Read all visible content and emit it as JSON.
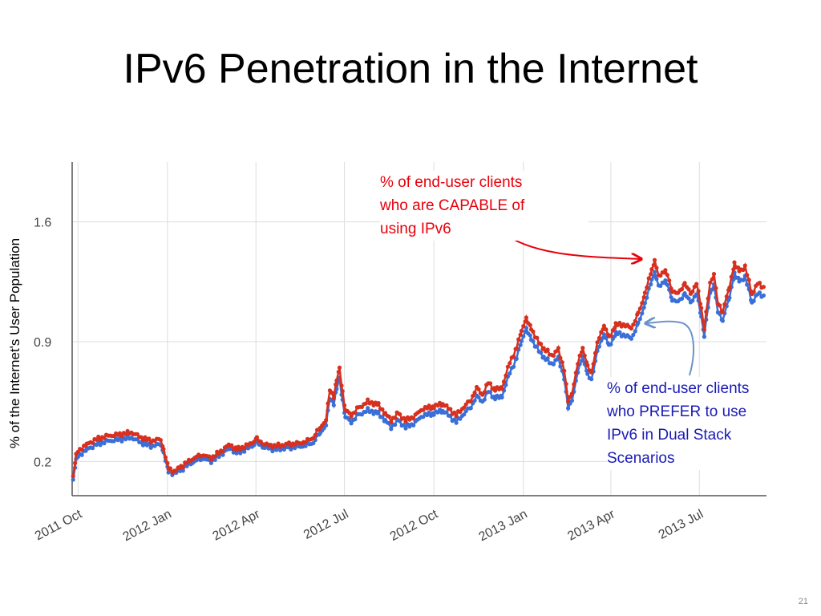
{
  "slide": {
    "title": "IPv6 Penetration in the Internet",
    "page_number": "21"
  },
  "annotations": {
    "capable_lines": [
      "% of end-user clients",
      "who are CAPABLE of",
      "using IPv6"
    ],
    "prefer_lines": [
      "% of end-user clients",
      "who PREFER to use",
      "IPv6 in Dual Stack",
      "Scenarios"
    ]
  },
  "colors": {
    "capable": "#d7301f",
    "prefer": "#3a6fd8",
    "capable_text": "#e8000b",
    "prefer_text": "#1a1ab8",
    "arrow_red": "#e8000b",
    "arrow_blue": "#6b93c9",
    "grid": "#dddddd",
    "axis_text": "#444444"
  },
  "chart_data": {
    "type": "line",
    "title": "",
    "xlabel": "",
    "ylabel": "% of the Internet's User Population",
    "x_axis": "date",
    "x_ticks": [
      "2011 Oct",
      "2012 Jan",
      "2012 Apr",
      "2012 Jul",
      "2012 Oct",
      "2013 Jan",
      "2013 Apr",
      "2013 Jul"
    ],
    "x_range": [
      "2011-09-25",
      "2013-09-08"
    ],
    "y_ticks": [
      "0.2",
      "0.9",
      "1.6"
    ],
    "ylim": [
      0.0,
      1.95
    ],
    "grid": true,
    "legend": "none",
    "series": [
      {
        "name": "% of end-user clients who are CAPABLE of using IPv6",
        "marker": "dot",
        "points": [
          [
            "2011-09-26",
            0.11
          ],
          [
            "2011-09-29",
            0.24
          ],
          [
            "2011-10-03",
            0.27
          ],
          [
            "2011-10-10",
            0.3
          ],
          [
            "2011-10-20",
            0.33
          ],
          [
            "2011-11-01",
            0.35
          ],
          [
            "2011-11-15",
            0.36
          ],
          [
            "2011-11-25",
            0.37
          ],
          [
            "2011-12-05",
            0.34
          ],
          [
            "2011-12-15",
            0.32
          ],
          [
            "2011-12-25",
            0.33
          ],
          [
            "2011-12-28",
            0.27
          ],
          [
            "2012-01-02",
            0.16
          ],
          [
            "2012-01-08",
            0.14
          ],
          [
            "2012-01-15",
            0.17
          ],
          [
            "2012-01-25",
            0.21
          ],
          [
            "2012-02-05",
            0.24
          ],
          [
            "2012-02-15",
            0.22
          ],
          [
            "2012-02-25",
            0.26
          ],
          [
            "2012-03-05",
            0.3
          ],
          [
            "2012-03-12",
            0.27
          ],
          [
            "2012-03-22",
            0.29
          ],
          [
            "2012-04-02",
            0.33
          ],
          [
            "2012-04-10",
            0.3
          ],
          [
            "2012-04-20",
            0.29
          ],
          [
            "2012-05-05",
            0.3
          ],
          [
            "2012-05-20",
            0.31
          ],
          [
            "2012-05-30",
            0.34
          ],
          [
            "2012-06-06",
            0.4
          ],
          [
            "2012-06-12",
            0.44
          ],
          [
            "2012-06-16",
            0.62
          ],
          [
            "2012-06-20",
            0.58
          ],
          [
            "2012-06-23",
            0.67
          ],
          [
            "2012-06-26",
            0.74
          ],
          [
            "2012-06-29",
            0.61
          ],
          [
            "2012-07-02",
            0.5
          ],
          [
            "2012-07-08",
            0.47
          ],
          [
            "2012-07-15",
            0.51
          ],
          [
            "2012-07-25",
            0.55
          ],
          [
            "2012-08-05",
            0.53
          ],
          [
            "2012-08-12",
            0.48
          ],
          [
            "2012-08-18",
            0.44
          ],
          [
            "2012-08-25",
            0.48
          ],
          [
            "2012-09-02",
            0.44
          ],
          [
            "2012-09-10",
            0.46
          ],
          [
            "2012-09-20",
            0.51
          ],
          [
            "2012-10-01",
            0.52
          ],
          [
            "2012-10-10",
            0.54
          ],
          [
            "2012-10-18",
            0.5
          ],
          [
            "2012-10-24",
            0.47
          ],
          [
            "2012-11-01",
            0.52
          ],
          [
            "2012-11-08",
            0.56
          ],
          [
            "2012-11-14",
            0.63
          ],
          [
            "2012-11-20",
            0.59
          ],
          [
            "2012-11-26",
            0.66
          ],
          [
            "2012-12-03",
            0.62
          ],
          [
            "2012-12-10",
            0.63
          ],
          [
            "2012-12-18",
            0.78
          ],
          [
            "2012-12-25",
            0.86
          ],
          [
            "2012-12-30",
            0.97
          ],
          [
            "2013-01-04",
            1.03
          ],
          [
            "2013-01-09",
            0.98
          ],
          [
            "2013-01-15",
            0.91
          ],
          [
            "2013-01-22",
            0.86
          ],
          [
            "2013-01-30",
            0.82
          ],
          [
            "2013-02-06",
            0.85
          ],
          [
            "2013-02-12",
            0.74
          ],
          [
            "2013-02-16",
            0.55
          ],
          [
            "2013-02-20",
            0.6
          ],
          [
            "2013-02-26",
            0.77
          ],
          [
            "2013-03-03",
            0.87
          ],
          [
            "2013-03-08",
            0.75
          ],
          [
            "2013-03-12",
            0.72
          ],
          [
            "2013-03-18",
            0.89
          ],
          [
            "2013-03-25",
            1.0
          ],
          [
            "2013-03-30",
            0.92
          ],
          [
            "2013-04-06",
            1.0
          ],
          [
            "2013-04-14",
            1.0
          ],
          [
            "2013-04-22",
            0.98
          ],
          [
            "2013-04-29",
            1.06
          ],
          [
            "2013-05-06",
            1.18
          ],
          [
            "2013-05-13",
            1.32
          ],
          [
            "2013-05-16",
            1.38
          ],
          [
            "2013-05-20",
            1.28
          ],
          [
            "2013-05-27",
            1.32
          ],
          [
            "2013-06-03",
            1.2
          ],
          [
            "2013-06-09",
            1.18
          ],
          [
            "2013-06-16",
            1.24
          ],
          [
            "2013-06-22",
            1.18
          ],
          [
            "2013-06-28",
            1.24
          ],
          [
            "2013-07-03",
            1.1
          ],
          [
            "2013-07-06",
            0.98
          ],
          [
            "2013-07-12",
            1.24
          ],
          [
            "2013-07-16",
            1.3
          ],
          [
            "2013-07-20",
            1.12
          ],
          [
            "2013-07-25",
            1.08
          ],
          [
            "2013-08-01",
            1.22
          ],
          [
            "2013-08-06",
            1.36
          ],
          [
            "2013-08-11",
            1.31
          ],
          [
            "2013-08-17",
            1.34
          ],
          [
            "2013-08-24",
            1.18
          ],
          [
            "2013-08-30",
            1.24
          ],
          [
            "2013-09-05",
            1.22
          ]
        ]
      },
      {
        "name": "% of end-user clients who PREFER to use IPv6 in Dual Stack Scenarios",
        "marker": "dot",
        "points": [
          [
            "2011-09-26",
            0.09
          ],
          [
            "2011-09-29",
            0.21
          ],
          [
            "2011-10-03",
            0.24
          ],
          [
            "2011-10-10",
            0.27
          ],
          [
            "2011-10-20",
            0.3
          ],
          [
            "2011-11-01",
            0.32
          ],
          [
            "2011-11-15",
            0.33
          ],
          [
            "2011-11-25",
            0.34
          ],
          [
            "2011-12-05",
            0.31
          ],
          [
            "2011-12-15",
            0.29
          ],
          [
            "2011-12-25",
            0.3
          ],
          [
            "2011-12-28",
            0.25
          ],
          [
            "2012-01-02",
            0.14
          ],
          [
            "2012-01-08",
            0.13
          ],
          [
            "2012-01-15",
            0.15
          ],
          [
            "2012-01-25",
            0.19
          ],
          [
            "2012-02-05",
            0.22
          ],
          [
            "2012-02-15",
            0.2
          ],
          [
            "2012-02-25",
            0.24
          ],
          [
            "2012-03-05",
            0.28
          ],
          [
            "2012-03-12",
            0.25
          ],
          [
            "2012-03-22",
            0.27
          ],
          [
            "2012-04-02",
            0.31
          ],
          [
            "2012-04-10",
            0.28
          ],
          [
            "2012-04-20",
            0.27
          ],
          [
            "2012-05-05",
            0.28
          ],
          [
            "2012-05-20",
            0.29
          ],
          [
            "2012-05-30",
            0.31
          ],
          [
            "2012-06-06",
            0.37
          ],
          [
            "2012-06-12",
            0.41
          ],
          [
            "2012-06-16",
            0.57
          ],
          [
            "2012-06-20",
            0.54
          ],
          [
            "2012-06-23",
            0.62
          ],
          [
            "2012-06-26",
            0.68
          ],
          [
            "2012-06-29",
            0.56
          ],
          [
            "2012-07-02",
            0.46
          ],
          [
            "2012-07-08",
            0.43
          ],
          [
            "2012-07-15",
            0.47
          ],
          [
            "2012-07-25",
            0.5
          ],
          [
            "2012-08-05",
            0.48
          ],
          [
            "2012-08-12",
            0.44
          ],
          [
            "2012-08-18",
            0.4
          ],
          [
            "2012-08-25",
            0.44
          ],
          [
            "2012-09-02",
            0.4
          ],
          [
            "2012-09-10",
            0.42
          ],
          [
            "2012-09-20",
            0.47
          ],
          [
            "2012-10-01",
            0.48
          ],
          [
            "2012-10-10",
            0.5
          ],
          [
            "2012-10-18",
            0.46
          ],
          [
            "2012-10-24",
            0.43
          ],
          [
            "2012-11-01",
            0.48
          ],
          [
            "2012-11-08",
            0.52
          ],
          [
            "2012-11-14",
            0.58
          ],
          [
            "2012-11-20",
            0.55
          ],
          [
            "2012-11-26",
            0.61
          ],
          [
            "2012-12-03",
            0.57
          ],
          [
            "2012-12-10",
            0.58
          ],
          [
            "2012-12-18",
            0.72
          ],
          [
            "2012-12-25",
            0.8
          ],
          [
            "2012-12-30",
            0.91
          ],
          [
            "2013-01-04",
            0.97
          ],
          [
            "2013-01-09",
            0.92
          ],
          [
            "2013-01-15",
            0.86
          ],
          [
            "2013-01-22",
            0.81
          ],
          [
            "2013-01-30",
            0.77
          ],
          [
            "2013-02-06",
            0.8
          ],
          [
            "2013-02-12",
            0.69
          ],
          [
            "2013-02-16",
            0.51
          ],
          [
            "2013-02-20",
            0.56
          ],
          [
            "2013-02-26",
            0.72
          ],
          [
            "2013-03-03",
            0.82
          ],
          [
            "2013-03-08",
            0.7
          ],
          [
            "2013-03-12",
            0.68
          ],
          [
            "2013-03-18",
            0.84
          ],
          [
            "2013-03-25",
            0.95
          ],
          [
            "2013-03-30",
            0.87
          ],
          [
            "2013-04-06",
            0.95
          ],
          [
            "2013-04-14",
            0.94
          ],
          [
            "2013-04-22",
            0.92
          ],
          [
            "2013-04-29",
            1.0
          ],
          [
            "2013-05-06",
            1.12
          ],
          [
            "2013-05-13",
            1.26
          ],
          [
            "2013-05-16",
            1.31
          ],
          [
            "2013-05-20",
            1.22
          ],
          [
            "2013-05-27",
            1.26
          ],
          [
            "2013-06-03",
            1.15
          ],
          [
            "2013-06-09",
            1.13
          ],
          [
            "2013-06-16",
            1.18
          ],
          [
            "2013-06-22",
            1.13
          ],
          [
            "2013-06-28",
            1.18
          ],
          [
            "2013-07-03",
            1.05
          ],
          [
            "2013-07-06",
            0.94
          ],
          [
            "2013-07-12",
            1.18
          ],
          [
            "2013-07-16",
            1.24
          ],
          [
            "2013-07-20",
            1.07
          ],
          [
            "2013-07-25",
            1.03
          ],
          [
            "2013-08-01",
            1.16
          ],
          [
            "2013-08-06",
            1.3
          ],
          [
            "2013-08-11",
            1.25
          ],
          [
            "2013-08-17",
            1.28
          ],
          [
            "2013-08-24",
            1.13
          ],
          [
            "2013-08-30",
            1.18
          ],
          [
            "2013-09-05",
            1.17
          ]
        ]
      }
    ]
  }
}
